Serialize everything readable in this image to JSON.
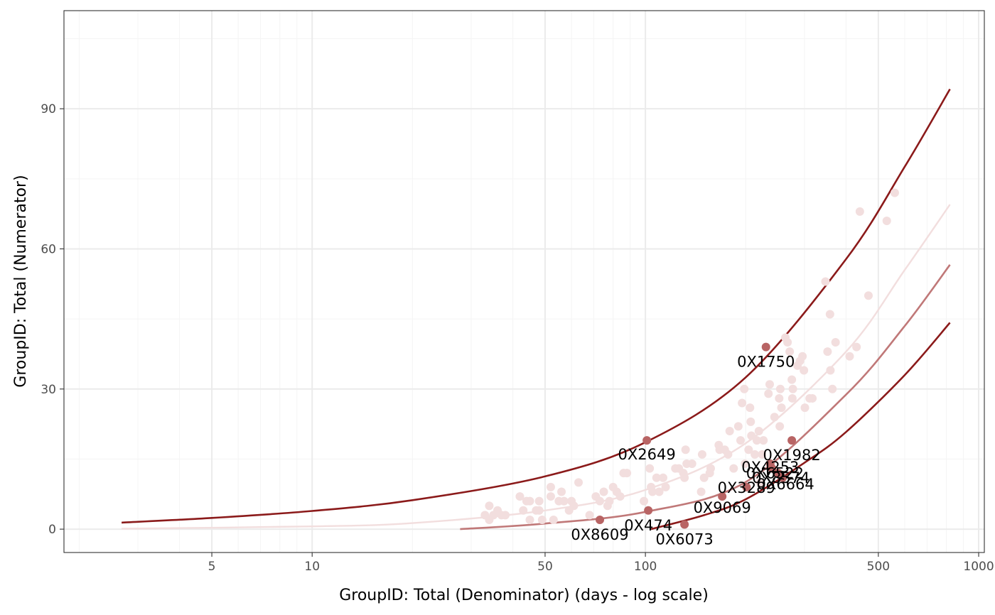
{
  "chart_data": {
    "type": "scatter",
    "title": "",
    "xlabel": "GroupID:  Total (Denominator) (days - log scale)",
    "ylabel": "GroupID:  Total (Numerator)",
    "x_scale": "log",
    "xlim": [
      1.8,
      1040
    ],
    "ylim": [
      -5,
      111
    ],
    "x_ticks": [
      5,
      10,
      50,
      100,
      500,
      1000
    ],
    "x_tick_labels": [
      "5",
      "10",
      "50",
      "100",
      "500",
      "1000"
    ],
    "y_ticks": [
      0,
      30,
      60,
      90
    ],
    "y_tick_labels": [
      "0",
      "30",
      "60",
      "90"
    ],
    "grid": true,
    "legend": "none",
    "colors": {
      "control_limit_outer": "#8b1a1a",
      "control_limit_inner": "#c07878",
      "center_line": "#f2dede",
      "point_normal": "#f2dede",
      "point_flagged": "#b86464",
      "panel_border": "#333333",
      "grid_major": "#ebebeb",
      "grid_minor": "#f5f5f5"
    },
    "background_points": [
      [
        33,
        3
      ],
      [
        34,
        2
      ],
      [
        34,
        5
      ],
      [
        35,
        3
      ],
      [
        36,
        4
      ],
      [
        37,
        3
      ],
      [
        38,
        3
      ],
      [
        42,
        7
      ],
      [
        43,
        4
      ],
      [
        44,
        6
      ],
      [
        45,
        2
      ],
      [
        45,
        6
      ],
      [
        47,
        4
      ],
      [
        48,
        4
      ],
      [
        48,
        6
      ],
      [
        49,
        2
      ],
      [
        52,
        7
      ],
      [
        52,
        9
      ],
      [
        53,
        2
      ],
      [
        55,
        6
      ],
      [
        56,
        8
      ],
      [
        57,
        6
      ],
      [
        59,
        4
      ],
      [
        60,
        6
      ],
      [
        61,
        5
      ],
      [
        63,
        10
      ],
      [
        68,
        3
      ],
      [
        71,
        7
      ],
      [
        73,
        6
      ],
      [
        75,
        8
      ],
      [
        77,
        5
      ],
      [
        78,
        6
      ],
      [
        80,
        9
      ],
      [
        82,
        8
      ],
      [
        84,
        7
      ],
      [
        86,
        12
      ],
      [
        88,
        12
      ],
      [
        99,
        6
      ],
      [
        103,
        13
      ],
      [
        104,
        9
      ],
      [
        105,
        8
      ],
      [
        108,
        11
      ],
      [
        110,
        8
      ],
      [
        113,
        11
      ],
      [
        115,
        9
      ],
      [
        123,
        13
      ],
      [
        126,
        13
      ],
      [
        130,
        12
      ],
      [
        131,
        11
      ],
      [
        132,
        17
      ],
      [
        133,
        14
      ],
      [
        138,
        14
      ],
      [
        147,
        8
      ],
      [
        148,
        16
      ],
      [
        150,
        11
      ],
      [
        156,
        12
      ],
      [
        157,
        13
      ],
      [
        166,
        18
      ],
      [
        167,
        17
      ],
      [
        173,
        17
      ],
      [
        177,
        16
      ],
      [
        179,
        21
      ],
      [
        184,
        13
      ],
      [
        190,
        22
      ],
      [
        193,
        19
      ],
      [
        195,
        27
      ],
      [
        198,
        30
      ],
      [
        199,
        14
      ],
      [
        204,
        17
      ],
      [
        206,
        26
      ],
      [
        207,
        23
      ],
      [
        208,
        20
      ],
      [
        213,
        16
      ],
      [
        216,
        19
      ],
      [
        219,
        21
      ],
      [
        221,
        10
      ],
      [
        224,
        16
      ],
      [
        226,
        19
      ],
      [
        234,
        29
      ],
      [
        236,
        31
      ],
      [
        244,
        24
      ],
      [
        252,
        28
      ],
      [
        253,
        22
      ],
      [
        254,
        30
      ],
      [
        256,
        26
      ],
      [
        263,
        41
      ],
      [
        267,
        40
      ],
      [
        271,
        38
      ],
      [
        275,
        32
      ],
      [
        276,
        28
      ],
      [
        277,
        30
      ],
      [
        286,
        35
      ],
      [
        291,
        36
      ],
      [
        296,
        37
      ],
      [
        299,
        34
      ],
      [
        301,
        26
      ],
      [
        311,
        28
      ],
      [
        317,
        28
      ],
      [
        347,
        53
      ],
      [
        352,
        38
      ],
      [
        358,
        46
      ],
      [
        359,
        34
      ],
      [
        364,
        30
      ],
      [
        372,
        40
      ],
      [
        410,
        37
      ],
      [
        430,
        39
      ],
      [
        440,
        68
      ],
      [
        467,
        50
      ],
      [
        530,
        66
      ],
      [
        560,
        72
      ]
    ],
    "flagged_points": [
      {
        "x": 230,
        "y": 39,
        "label": "0X1750"
      },
      {
        "x": 101,
        "y": 19,
        "label": "0X2649"
      },
      {
        "x": 275,
        "y": 19,
        "label": "0X1982"
      },
      {
        "x": 237,
        "y": 14,
        "label": "0X4253"
      },
      {
        "x": 240,
        "y": 13,
        "label": "0X6522"
      },
      {
        "x": 250,
        "y": 12,
        "label": "0X8574"
      },
      {
        "x": 258,
        "y": 11,
        "label": "0X6664"
      },
      {
        "x": 201,
        "y": 9,
        "label": "0X3289"
      },
      {
        "x": 170,
        "y": 7,
        "label": "0X9069"
      },
      {
        "x": 102,
        "y": 4,
        "label": "0X474"
      },
      {
        "x": 73,
        "y": 2,
        "label": "0X8609"
      },
      {
        "x": 131,
        "y": 1,
        "label": "0X6073"
      }
    ],
    "series": [
      {
        "role": "upper outer limit",
        "x": [
          2.68,
          5,
          10,
          20,
          50,
          100,
          200,
          400,
          600,
          820
        ],
        "y": [
          1.4,
          2.4,
          3.9,
          6.2,
          11.3,
          18.6,
          32.5,
          57.8,
          77.6,
          94.2
        ]
      },
      {
        "role": "center line",
        "x": [
          2.68,
          10,
          20,
          50,
          100,
          200,
          400,
          600,
          820
        ],
        "y": [
          0.1,
          0.6,
          1.3,
          4.0,
          8.4,
          18.4,
          38.0,
          55.5,
          69.5
        ]
      },
      {
        "role": "lower inner limit",
        "x": [
          27.8,
          50,
          100,
          200,
          400,
          600,
          820
        ],
        "y": [
          0.0,
          1.2,
          3.7,
          10.1,
          28.8,
          43.5,
          56.6
        ]
      },
      {
        "role": "lower outer limit",
        "x": [
          104,
          150,
          200,
          300,
          400,
          600,
          820
        ],
        "y": [
          0.0,
          3.0,
          6.4,
          14.2,
          20.8,
          33.0,
          44.2
        ]
      }
    ]
  }
}
